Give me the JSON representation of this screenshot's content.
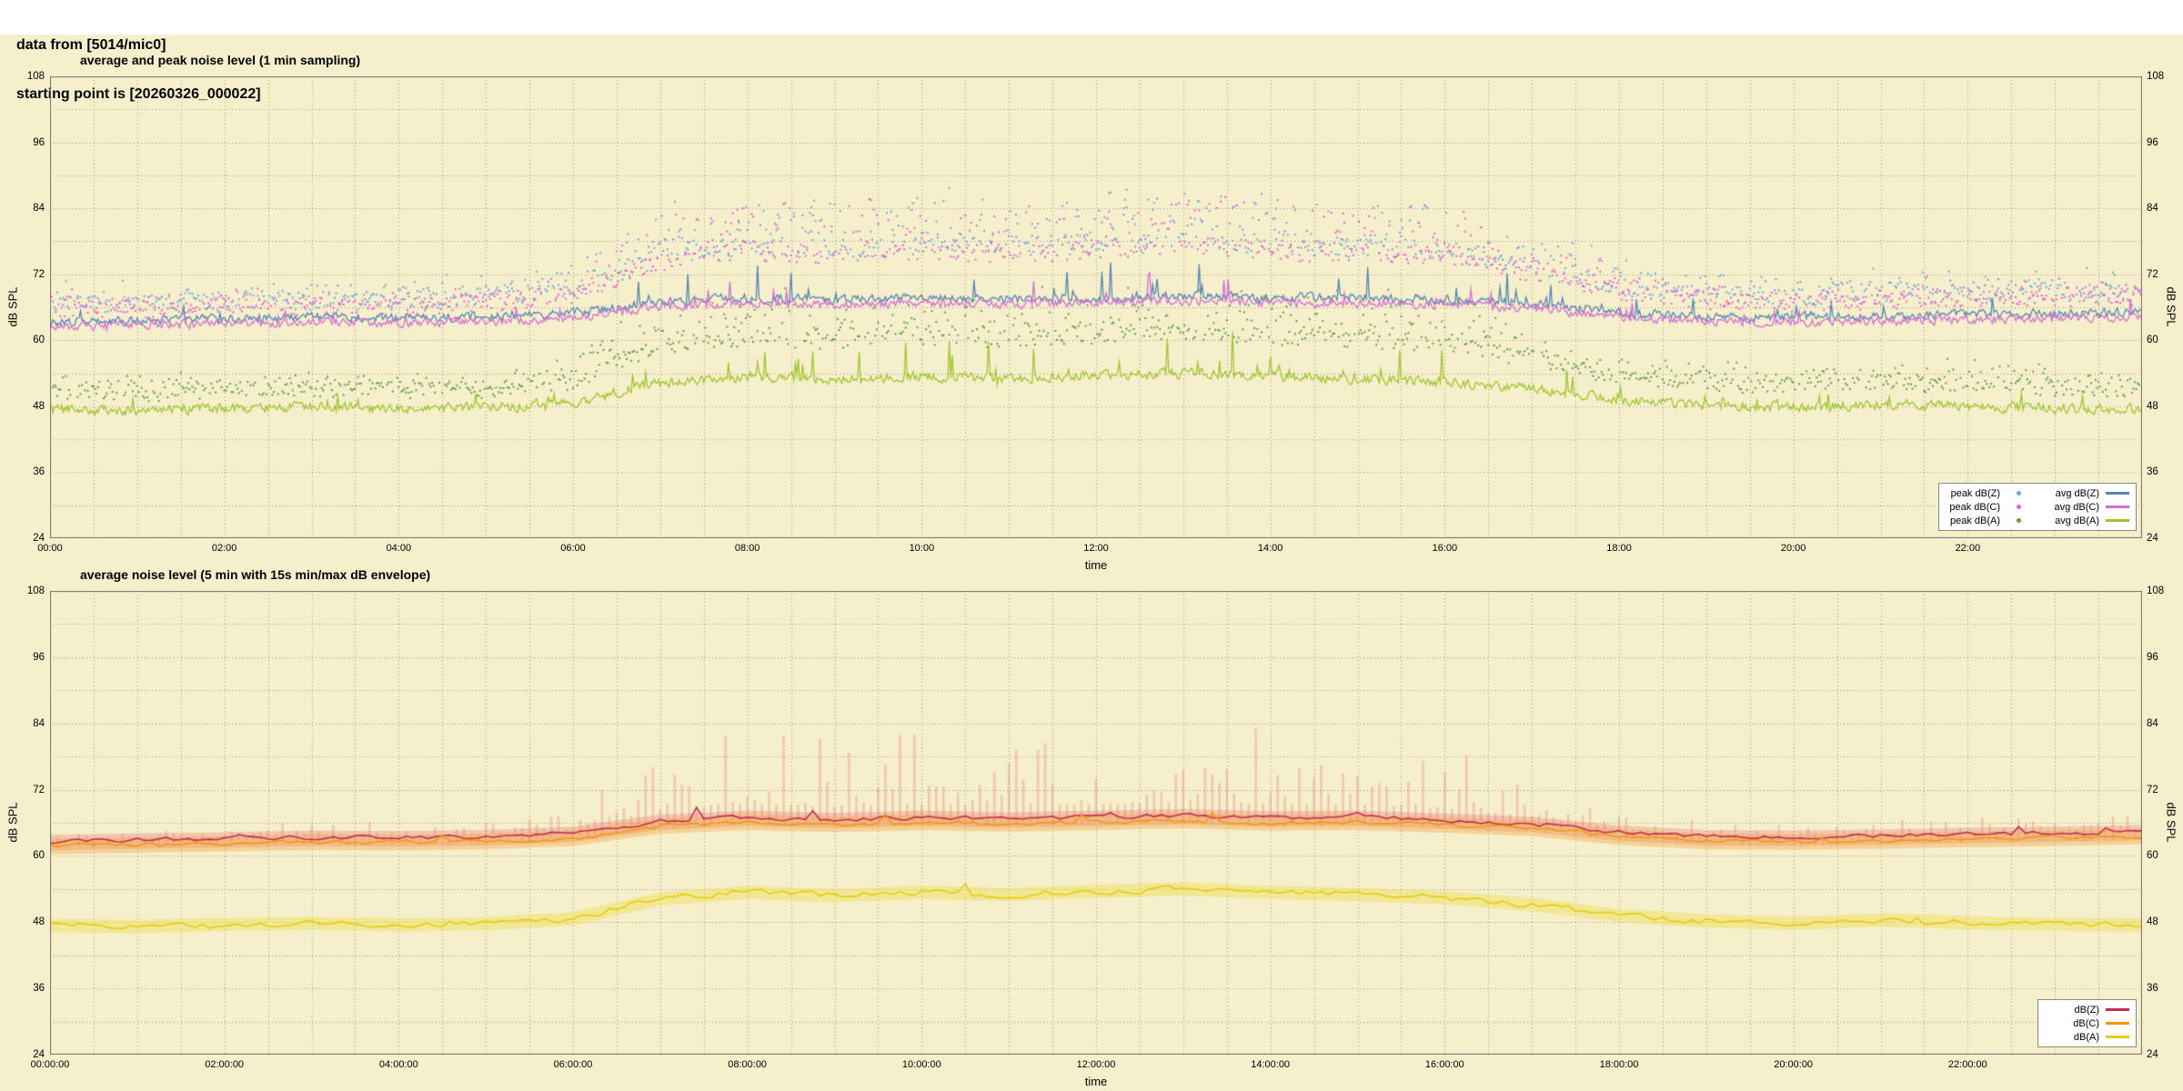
{
  "header": {
    "line1": "data from [5014/mic0]",
    "line2": "starting point is [20260326_000022]"
  },
  "page": {
    "background": "#ffffff",
    "plot_background": "#f6efcb",
    "grid_color": "rgba(120,120,120,0.75)",
    "border_color": "#6f6f6f"
  },
  "chart_data": [
    {
      "id": "chart1",
      "type": "line+scatter",
      "title": "average and peak noise level (1 min sampling)",
      "xlabel": "time",
      "ylabel_left": "dB SPL",
      "ylabel_right": "dB SPL",
      "ylim": [
        24,
        108
      ],
      "y_ticks": [
        24,
        36,
        48,
        60,
        72,
        84,
        96,
        108
      ],
      "y_grid_step_db": 6,
      "x_hours": 24,
      "x_grid_step_hours": 0.5,
      "x_tick_step_hours": 2,
      "x_tick_labels": [
        "00:00",
        "02:00",
        "04:00",
        "06:00",
        "08:00",
        "10:00",
        "12:00",
        "14:00",
        "16:00",
        "18:00",
        "20:00",
        "22:00"
      ],
      "sampling_minutes": 1,
      "grid": "dotted",
      "series": [
        {
          "name": "peak dB(Z)",
          "type": "scatter",
          "color": "#6fa8dc",
          "density": 0.8,
          "hourly": [
            66.5,
            66.5,
            67.0,
            67.0,
            67.0,
            67.5,
            69.0,
            75.0,
            77.0,
            76.0,
            77.0,
            76.5,
            77.0,
            77.5,
            77.0,
            76.5,
            76.0,
            73.0,
            69.5,
            68.0,
            67.5,
            68.0,
            68.5,
            68.5,
            68.5
          ],
          "spread": [
            3,
            3,
            3,
            3,
            3,
            3.5,
            5,
            9,
            10,
            9.5,
            10,
            10,
            10,
            10.5,
            10,
            9.5,
            9,
            7,
            5,
            4,
            3.5,
            4,
            4,
            3.5,
            3.5
          ]
        },
        {
          "name": "peak dB(C)",
          "type": "scatter",
          "color": "#ea5fd0",
          "density": 0.8,
          "hourly": [
            65.5,
            65.5,
            66.0,
            66.0,
            66.0,
            66.5,
            68.0,
            74.0,
            76.0,
            75.0,
            76.0,
            75.5,
            76.0,
            76.5,
            76.0,
            75.5,
            75.0,
            72.0,
            68.5,
            67.0,
            66.5,
            67.0,
            67.5,
            67.5,
            67.5
          ],
          "spread": [
            3,
            3,
            3,
            3,
            3,
            3.5,
            5,
            9,
            10,
            9.5,
            10,
            10,
            10,
            10.5,
            10,
            9.5,
            9,
            7,
            5,
            4,
            3.5,
            4,
            4,
            3.5,
            3.5
          ]
        },
        {
          "name": "peak dB(A)",
          "type": "scatter",
          "color": "#5f9e47",
          "density": 0.8,
          "hourly": [
            50.5,
            50.3,
            50.8,
            51.0,
            50.8,
            51.0,
            52.5,
            58.5,
            60.5,
            59.8,
            60.5,
            60.0,
            60.5,
            61.0,
            60.5,
            60.0,
            59.2,
            56.5,
            53.0,
            52.0,
            51.5,
            52.2,
            51.8,
            51.2,
            51.0
          ],
          "spread": [
            2.5,
            2.5,
            2.5,
            2.5,
            2.5,
            3,
            4.5,
            8,
            9,
            8.5,
            9,
            9,
            9,
            9.5,
            9,
            8.5,
            8,
            6,
            4,
            3.5,
            3,
            3.5,
            3.5,
            3,
            3
          ]
        },
        {
          "name": "avg dB(Z)",
          "type": "line",
          "color": "#5585b5",
          "width": 1.3,
          "noise": 0.7,
          "spike_prob": 0.05,
          "spike_amp": 7,
          "hourly": [
            63.4,
            63.7,
            63.9,
            64.2,
            64.1,
            64.3,
            64.9,
            67.1,
            67.7,
            67.4,
            67.7,
            67.5,
            67.8,
            68.1,
            67.7,
            67.8,
            67.3,
            66.7,
            65.1,
            64.3,
            64.2,
            64.4,
            64.7,
            64.9,
            65.2
          ]
        },
        {
          "name": "avg dB(C)",
          "type": "line",
          "color": "#d36fd3",
          "width": 1.3,
          "noise": 0.7,
          "spike_prob": 0.05,
          "spike_amp": 6,
          "hourly": [
            62.5,
            62.8,
            63.0,
            63.3,
            63.2,
            63.4,
            64.0,
            66.2,
            66.8,
            66.5,
            66.8,
            66.6,
            66.9,
            67.2,
            66.8,
            66.9,
            66.4,
            65.8,
            64.2,
            63.4,
            63.3,
            63.5,
            63.8,
            64.0,
            64.3
          ]
        },
        {
          "name": "avg dB(A)",
          "type": "line",
          "color": "#9fc52f",
          "width": 1.3,
          "noise": 0.8,
          "spike_prob": 0.06,
          "spike_amp": 8,
          "hourly": [
            47.4,
            47.2,
            47.6,
            47.8,
            47.5,
            47.7,
            48.6,
            52.2,
            53.4,
            52.8,
            53.4,
            53.0,
            53.6,
            54.0,
            53.4,
            53.0,
            52.4,
            51.2,
            49.2,
            48.2,
            47.8,
            48.4,
            47.9,
            47.6,
            47.5
          ]
        }
      ],
      "legend": {
        "position": "bottom-right",
        "columns": [
          [
            {
              "label": "peak dB(Z)",
              "marker": "dot",
              "color": "#6fa8dc"
            },
            {
              "label": "peak dB(C)",
              "marker": "dot",
              "color": "#ea5fd0"
            },
            {
              "label": "peak dB(A)",
              "marker": "dot",
              "color": "#5f9e47"
            }
          ],
          [
            {
              "label": "avg dB(Z)",
              "marker": "line",
              "color": "#5585b5"
            },
            {
              "label": "avg dB(C)",
              "marker": "line",
              "color": "#d36fd3"
            },
            {
              "label": "avg dB(A)",
              "marker": "line",
              "color": "#9fc52f"
            }
          ]
        ]
      }
    },
    {
      "id": "chart2",
      "type": "line+area",
      "title": "average noise level (5 min with 15s min/max dB envelope)",
      "xlabel": "time",
      "ylabel_left": "dB SPL",
      "ylabel_right": "dB SPL",
      "ylim": [
        24,
        108
      ],
      "y_ticks": [
        24,
        36,
        48,
        60,
        72,
        84,
        96,
        108
      ],
      "y_grid_step_db": 6,
      "x_hours": 24,
      "x_grid_step_hours": 0.5,
      "x_tick_step_hours": 2,
      "x_tick_labels": [
        "00:00:00",
        "02:00:00",
        "04:00:00",
        "06:00:00",
        "08:00:00",
        "10:00:00",
        "12:00:00",
        "14:00:00",
        "16:00:00",
        "18:00:00",
        "20:00:00",
        "22:00:00"
      ],
      "sampling_minutes": 5,
      "grid": "dotted",
      "bands": [
        {
          "name": "dB(Z) 15s min/max envelope",
          "color": "rgba(224,108,108,0.30)",
          "spiky": true,
          "down": 1.6,
          "hourly": [
            62.6,
            62.9,
            63.1,
            63.4,
            63.3,
            63.5,
            64.1,
            66.3,
            67.0,
            66.6,
            67.0,
            66.7,
            67.0,
            67.3,
            66.9,
            67.0,
            66.5,
            65.9,
            64.3,
            63.5,
            63.4,
            63.6,
            63.9,
            64.1,
            64.4
          ],
          "up": [
            2.5,
            2.5,
            2.5,
            3,
            3,
            3,
            5,
            14,
            16,
            15,
            16,
            15.5,
            16,
            16.5,
            16,
            15,
            14,
            9,
            4.5,
            3,
            3,
            3.5,
            3,
            3,
            3
          ]
        },
        {
          "name": "dB(C) 15s min/max envelope",
          "color": "rgba(246,164,70,0.40)",
          "spiky": false,
          "down": 1.4,
          "up": 1.4,
          "hourly": [
            61.7,
            62.0,
            62.2,
            62.5,
            62.4,
            62.6,
            63.2,
            65.4,
            66.1,
            65.7,
            66.1,
            65.8,
            66.1,
            66.4,
            66.0,
            66.1,
            65.6,
            65.0,
            63.4,
            62.6,
            62.5,
            62.7,
            63.0,
            63.2,
            63.5
          ]
        },
        {
          "name": "dB(A) 15s min/max envelope",
          "color": "rgba(238,222,80,0.45)",
          "spiky": false,
          "down": 1.2,
          "up": 1.2,
          "hourly": [
            47.4,
            47.2,
            47.6,
            47.8,
            47.5,
            47.7,
            48.6,
            52.2,
            53.4,
            52.8,
            53.4,
            53.0,
            53.6,
            54.0,
            53.4,
            53.0,
            52.4,
            51.2,
            49.2,
            48.2,
            47.8,
            48.4,
            47.9,
            47.6,
            47.5
          ]
        }
      ],
      "series": [
        {
          "name": "dB(Z)",
          "type": "line",
          "color": "#c22d50",
          "width": 1.6,
          "noise": 0.35,
          "spike_prob": 0.05,
          "spike_amp": 3,
          "hourly": [
            62.6,
            62.9,
            63.1,
            63.4,
            63.3,
            63.5,
            64.1,
            66.3,
            67.0,
            66.6,
            67.0,
            66.7,
            67.0,
            67.3,
            66.9,
            67.0,
            66.5,
            65.9,
            64.3,
            63.5,
            63.4,
            63.6,
            63.9,
            64.1,
            64.4
          ]
        },
        {
          "name": "dB(C)",
          "type": "line",
          "color": "#f2960f",
          "width": 1.6,
          "noise": 0.35,
          "spike_prob": 0.05,
          "spike_amp": 3,
          "hourly": [
            61.7,
            62.0,
            62.2,
            62.5,
            62.4,
            62.6,
            63.2,
            65.4,
            66.1,
            65.7,
            66.1,
            65.8,
            66.1,
            66.4,
            66.0,
            66.1,
            65.6,
            65.0,
            63.4,
            62.6,
            62.5,
            62.7,
            63.0,
            63.2,
            63.5
          ]
        },
        {
          "name": "dB(A)",
          "type": "line",
          "color": "#e3cc11",
          "width": 1.6,
          "noise": 0.5,
          "spike_prob": 0.05,
          "spike_amp": 3.5,
          "hourly": [
            47.4,
            47.2,
            47.6,
            47.8,
            47.5,
            47.7,
            48.6,
            52.2,
            53.4,
            52.8,
            53.4,
            53.0,
            53.6,
            54.0,
            53.4,
            53.0,
            52.4,
            51.2,
            49.2,
            48.2,
            47.8,
            48.4,
            47.9,
            47.6,
            47.5
          ]
        }
      ],
      "legend": {
        "position": "bottom-right",
        "columns": [
          [
            {
              "label": "dB(Z)",
              "marker": "line",
              "color": "#c22d50"
            },
            {
              "label": "dB(C)",
              "marker": "line",
              "color": "#f2960f"
            },
            {
              "label": "dB(A)",
              "marker": "line",
              "color": "#e3cc11"
            }
          ]
        ]
      }
    }
  ]
}
